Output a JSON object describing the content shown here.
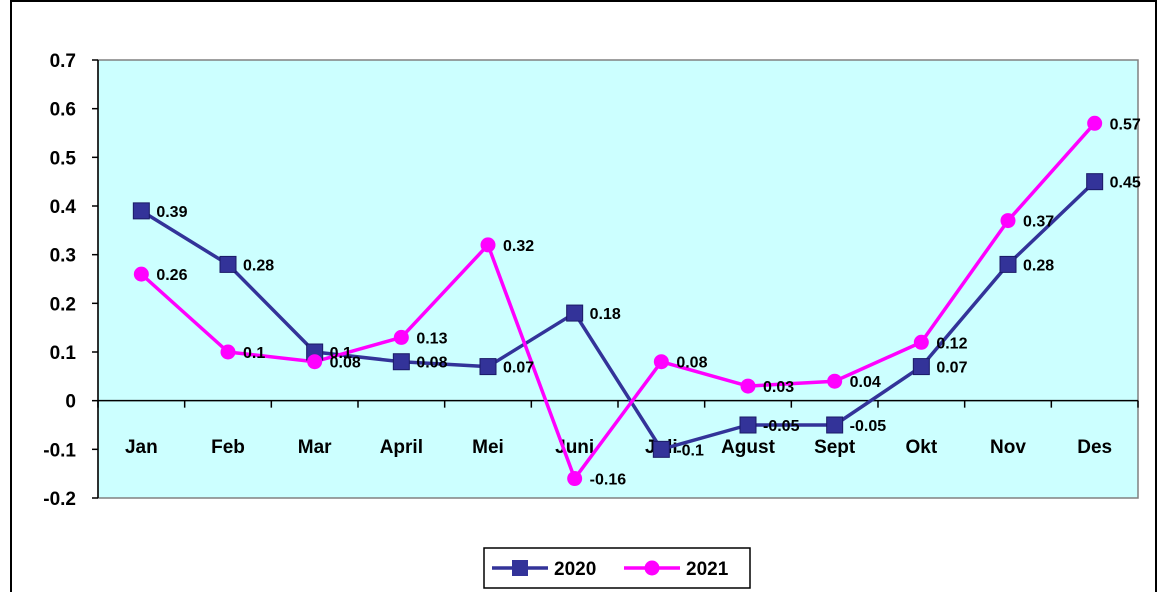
{
  "chart_data": {
    "type": "line",
    "title": "",
    "xlabel": "",
    "ylabel": "",
    "categories": [
      "Jan",
      "Feb",
      "Mar",
      "April",
      "Mei",
      "Juni",
      "Juli",
      "Agust",
      "Sept",
      "Okt",
      "Nov",
      "Des"
    ],
    "ylim": [
      -0.2,
      0.7
    ],
    "yticks": [
      "0.7",
      "0.6",
      "0.5",
      "0.4",
      "0.3",
      "0.2",
      "0.1",
      "0",
      "-0.1",
      "-0.2"
    ],
    "ytick_values": [
      0.7,
      0.6,
      0.5,
      0.4,
      0.3,
      0.2,
      0.1,
      0,
      -0.1,
      -0.2
    ],
    "grid": false,
    "plot_background": "#ccffff",
    "legend_position": "bottom",
    "series": [
      {
        "name": "2020",
        "color": "#333399",
        "marker": "square",
        "values": [
          0.39,
          0.28,
          0.1,
          0.08,
          0.07,
          0.18,
          -0.1,
          -0.05,
          -0.05,
          0.07,
          0.28,
          0.45
        ],
        "labels": [
          "0.39",
          "0.28",
          "0.1",
          "0.08",
          "0.07",
          "0.18",
          "-0.1",
          "-0.05",
          "-0.05",
          "0.07",
          "0.28",
          "0.45"
        ]
      },
      {
        "name": "2021",
        "color": "#ff00ff",
        "marker": "circle",
        "values": [
          0.26,
          0.1,
          0.08,
          0.13,
          0.32,
          -0.16,
          0.08,
          0.03,
          0.04,
          0.12,
          0.37,
          0.57
        ],
        "labels": [
          "0.26",
          "0.1",
          "0.08",
          "0.13",
          "0.32",
          "-0.16",
          "0.08",
          "0.03",
          "0.04",
          "0.12",
          "0.37",
          "0.57"
        ]
      }
    ]
  }
}
